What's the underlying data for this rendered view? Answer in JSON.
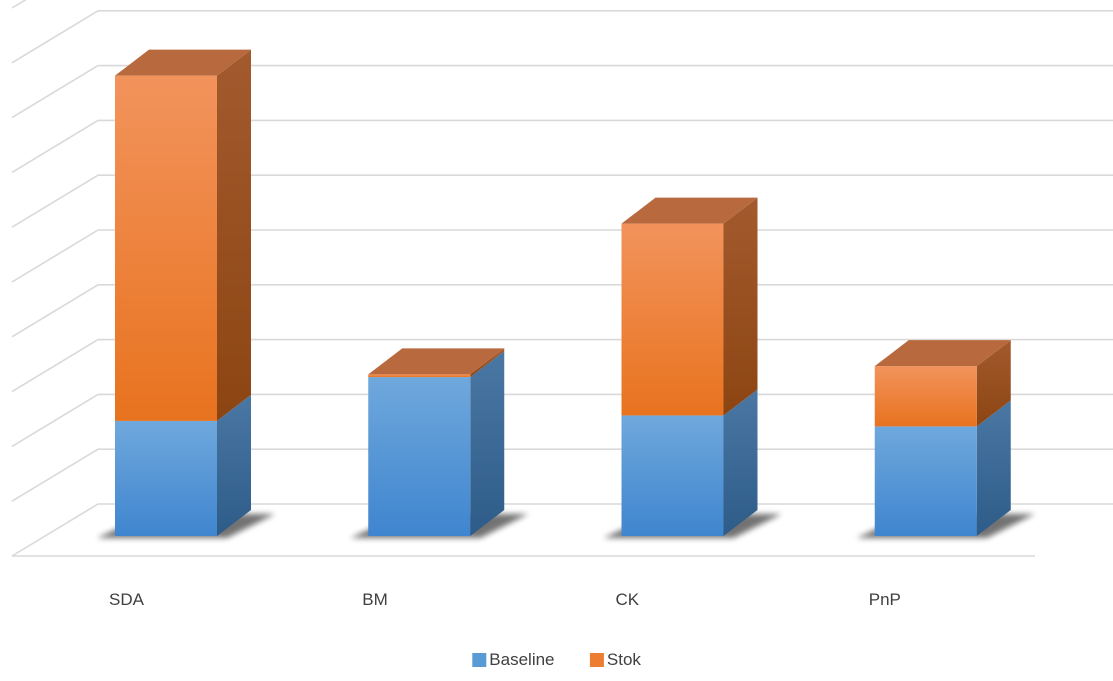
{
  "chart_data": {
    "type": "bar",
    "stacked": true,
    "three_d": true,
    "title": "",
    "xlabel": "",
    "ylabel": "",
    "categories": [
      "SDA",
      "BM",
      "CK",
      "PnP"
    ],
    "series": [
      {
        "name": "Baseline",
        "values": [
          2.1,
          2.9,
          2.2,
          2.0
        ]
      },
      {
        "name": "Stok",
        "values": [
          6.3,
          0.05,
          3.5,
          1.1
        ]
      }
    ],
    "ylim": [
      0,
      10
    ],
    "grid": true,
    "legend": "bottom",
    "colors": {
      "Baseline": "#5B9BD5",
      "Stok": "#ED7D31",
      "gridline": "#D9D9D9"
    }
  }
}
